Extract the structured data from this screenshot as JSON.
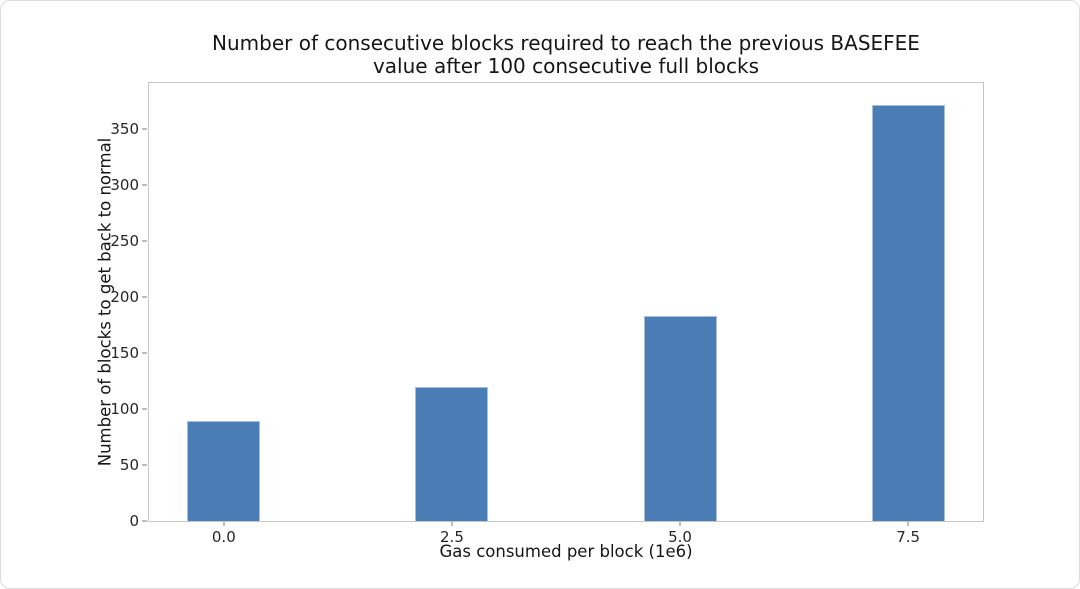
{
  "figure": {
    "background": "#ffffff",
    "border_color": "#dcdcdc"
  },
  "chart_data": {
    "type": "bar",
    "title": "Number of consecutive blocks required to reach the previous BASEFEE value after 100 consecutive full blocks",
    "title_lines": [
      "Number of consecutive blocks required to reach the previous BASEFEE",
      "value after 100 consecutive full blocks"
    ],
    "xlabel": "Gas consumed per block (1e6)",
    "ylabel": "Number of blocks to get back to normal",
    "x": [
      0,
      2.5,
      5.0,
      7.5
    ],
    "xtick_labels": [
      "0.0",
      "2.5",
      "5.0",
      "7.5"
    ],
    "values": [
      89,
      120,
      183,
      371
    ],
    "yticks": [
      0,
      50,
      100,
      150,
      200,
      250,
      300,
      350
    ],
    "ylim": [
      0,
      391
    ],
    "xlim": [
      -0.82,
      8.32
    ],
    "bar_width_data_units": 0.8,
    "bar_color": "#4a7cb5",
    "bar_edge_color": "#a9bed9",
    "spine_color": "#c6c6c6",
    "tick_color": "#bdbdbd",
    "text_color": "#1c1c1c",
    "grid": false,
    "legend_position": "none"
  }
}
